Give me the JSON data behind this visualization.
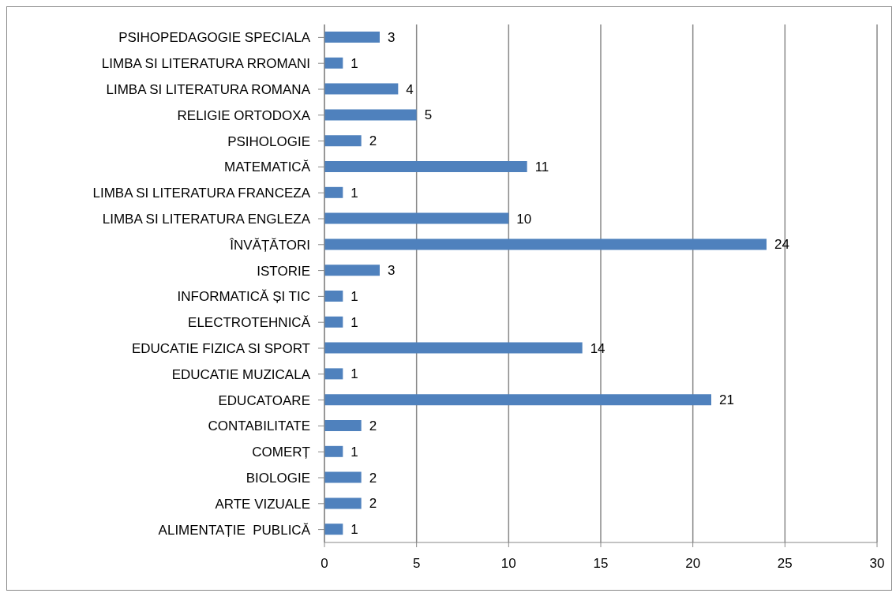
{
  "chart_data": {
    "type": "bar",
    "orientation": "horizontal",
    "categories": [
      "PSIHOPEDAGOGIE SPECIALA",
      "LIMBA SI LITERATURA RROMANI",
      "LIMBA SI LITERATURA ROMANA",
      "RELIGIE ORTODOXA",
      "PSIHOLOGIE",
      "MATEMATICĂ",
      "LIMBA SI LITERATURA FRANCEZA",
      "LIMBA SI LITERATURA ENGLEZA",
      "ÎNVĂȚĂTORI",
      "ISTORIE",
      "INFORMATICĂ ȘI TIC",
      "ELECTROTEHNICĂ",
      "EDUCATIE FIZICA SI SPORT",
      "EDUCATIE MUZICALA",
      "EDUCATOARE",
      "CONTABILITATE",
      "COMERȚ",
      "BIOLOGIE",
      "ARTE VIZUALE",
      "ALIMENTAȚIE  PUBLICĂ"
    ],
    "values": [
      3,
      1,
      4,
      5,
      2,
      11,
      1,
      10,
      24,
      3,
      1,
      1,
      14,
      1,
      21,
      2,
      1,
      2,
      2,
      1
    ],
    "color": "#4f81bd",
    "xlim": [
      0,
      30
    ],
    "xticks": [
      0,
      5,
      10,
      15,
      20,
      25,
      30
    ],
    "grid": "x",
    "data_labels": true
  }
}
